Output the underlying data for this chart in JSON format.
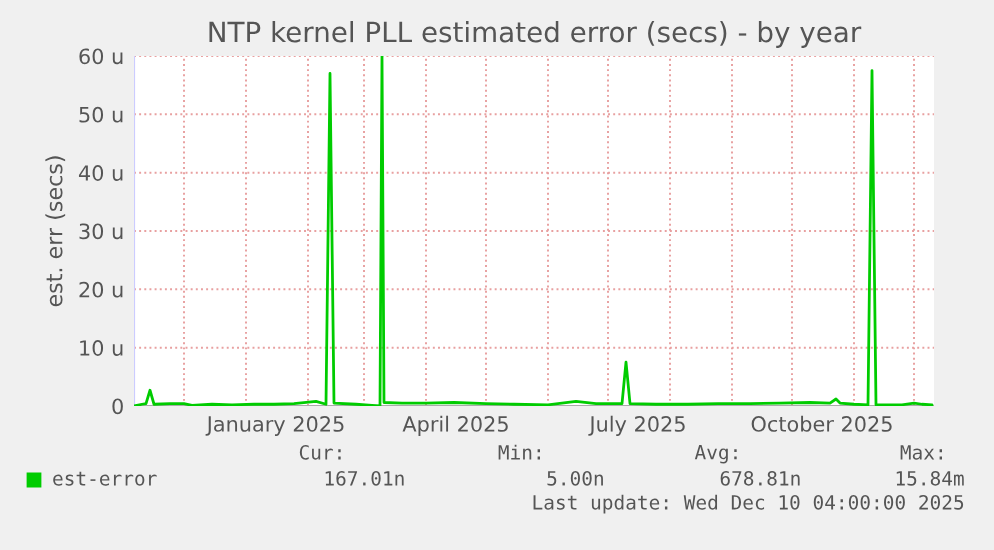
{
  "chart_data": {
    "type": "line",
    "title": "NTP kernel PLL estimated error (secs) - by year",
    "ylabel": "est. err (secs)",
    "x": [
      "2024-11-06",
      "2024-11-10",
      "2024-11-12",
      "2024-11-14",
      "2024-11-16",
      "2024-11-24",
      "2024-12-01",
      "2024-12-05",
      "2024-12-15",
      "2024-12-25",
      "2025-01-05",
      "2025-01-15",
      "2025-01-25",
      "2025-02-05",
      "2025-02-10",
      "2025-02-12",
      "2025-02-14",
      "2025-02-25",
      "2025-03-05",
      "2025-03-09",
      "2025-03-10",
      "2025-03-11",
      "2025-03-20",
      "2025-04-01",
      "2025-04-15",
      "2025-05-01",
      "2025-05-15",
      "2025-06-01",
      "2025-06-15",
      "2025-06-25",
      "2025-07-08",
      "2025-07-10",
      "2025-07-12",
      "2025-07-25",
      "2025-08-10",
      "2025-08-25",
      "2025-09-10",
      "2025-09-25",
      "2025-10-10",
      "2025-10-20",
      "2025-10-23",
      "2025-10-25",
      "2025-11-01",
      "2025-11-08",
      "2025-11-10",
      "2025-11-12",
      "2025-11-25",
      "2025-12-01",
      "2025-12-05",
      "2025-12-10"
    ],
    "series": [
      {
        "name": "est-error",
        "color": "#00cc00",
        "values": [
          0,
          0.3,
          0.4,
          2.7,
          0.3,
          0.4,
          0.4,
          0.1,
          0.3,
          0.2,
          0.3,
          0.3,
          0.4,
          0.8,
          0.3,
          57,
          0.5,
          0.3,
          0.1,
          0,
          60,
          0.6,
          0.5,
          0.5,
          0.6,
          0.4,
          0.3,
          0.2,
          0.8,
          0.4,
          0.4,
          7.5,
          0.4,
          0.3,
          0.3,
          0.4,
          0.4,
          0.5,
          0.6,
          0.5,
          1.2,
          0.5,
          0.3,
          0.2,
          57.5,
          0.2,
          0.2,
          0.5,
          0.3,
          0.2
        ]
      }
    ],
    "xlim": [
      "2024-11-06",
      "2025-12-11"
    ],
    "xticks": [
      {
        "value": "2025-01-16",
        "label": "January 2025"
      },
      {
        "value": "2025-04-16",
        "label": "April 2025"
      },
      {
        "value": "2025-07-16",
        "label": "July 2025"
      },
      {
        "value": "2025-10-16",
        "label": "October 2025"
      }
    ],
    "ylim": [
      0,
      60
    ],
    "yticks": [
      0,
      {
        "value": 10,
        "label": "10 u"
      },
      {
        "value": 20,
        "label": "20 u"
      },
      {
        "value": 30,
        "label": "30 u"
      },
      {
        "value": 40,
        "label": "40 u"
      },
      {
        "value": 50,
        "label": "50 u"
      },
      {
        "value": 60,
        "label": "60 u"
      }
    ],
    "grid": true,
    "legend": "bottom",
    "marker": "none",
    "line_style": "solid",
    "annotations": [
      "Cur:",
      "Min:",
      "Avg:",
      "Max:",
      "167.01n",
      "5.00n",
      "678.81n",
      "15.84m",
      "Last update: Wed Dec 10 04:00:00 2025"
    ]
  }
}
